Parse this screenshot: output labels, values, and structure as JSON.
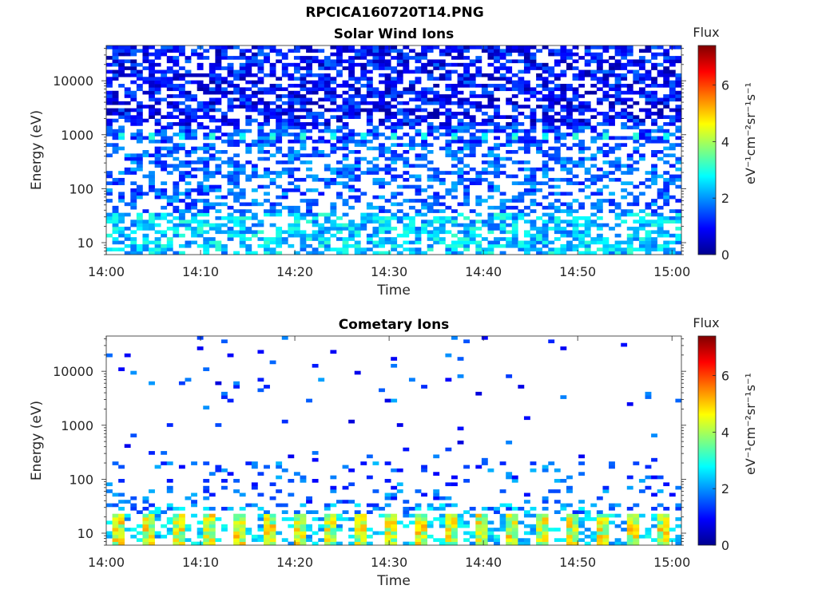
{
  "figure": {
    "title": "RPCICA160720T14.PNG"
  },
  "chart_data": [
    {
      "type": "heatmap",
      "title": "Solar Wind Ions",
      "xlabel": "Time",
      "ylabel": "Energy (eV)",
      "x_ticks": [
        "14:00",
        "14:10",
        "14:20",
        "14:30",
        "14:40",
        "14:50",
        "15:00"
      ],
      "xlim": [
        "14:00",
        "15:01"
      ],
      "y_scale": "log",
      "y_ticks": [
        10,
        100,
        1000,
        10000
      ],
      "y_tick_labels": [
        "10",
        "100",
        "1000",
        "10000"
      ],
      "ylim": [
        6,
        45000
      ],
      "colorbar": {
        "label": "Flux",
        "units": "eV⁻¹cm⁻²sr⁻¹s⁻¹",
        "ticks": [
          "0",
          "2",
          "4",
          "6"
        ],
        "range": [
          0,
          7.4
        ],
        "colormap": "jet"
      },
      "description_of_pattern": {
        "high_energy_band_level": 1.2,
        "mid_band_1000eV_level": 2.8,
        "low_energy_level": 2.5
      }
    },
    {
      "type": "heatmap",
      "title": "Cometary Ions",
      "xlabel": "Time",
      "ylabel": "Energy (eV)",
      "x_ticks": [
        "14:00",
        "14:10",
        "14:20",
        "14:30",
        "14:40",
        "14:50",
        "15:00"
      ],
      "xlim": [
        "14:00",
        "15:01"
      ],
      "y_scale": "log",
      "y_ticks": [
        10,
        100,
        1000,
        10000
      ],
      "y_tick_labels": [
        "10",
        "100",
        "1000",
        "10000"
      ],
      "ylim": [
        6,
        45000
      ],
      "colorbar": {
        "label": "Flux",
        "units": "eV⁻¹cm⁻²sr⁻¹s⁻¹",
        "ticks": [
          "0",
          "2",
          "4",
          "6"
        ],
        "range": [
          0,
          7.4
        ],
        "colormap": "jet"
      },
      "description_of_pattern": {
        "low_energy_peak_level": 4.8,
        "sparse_level": 1.5
      }
    }
  ]
}
